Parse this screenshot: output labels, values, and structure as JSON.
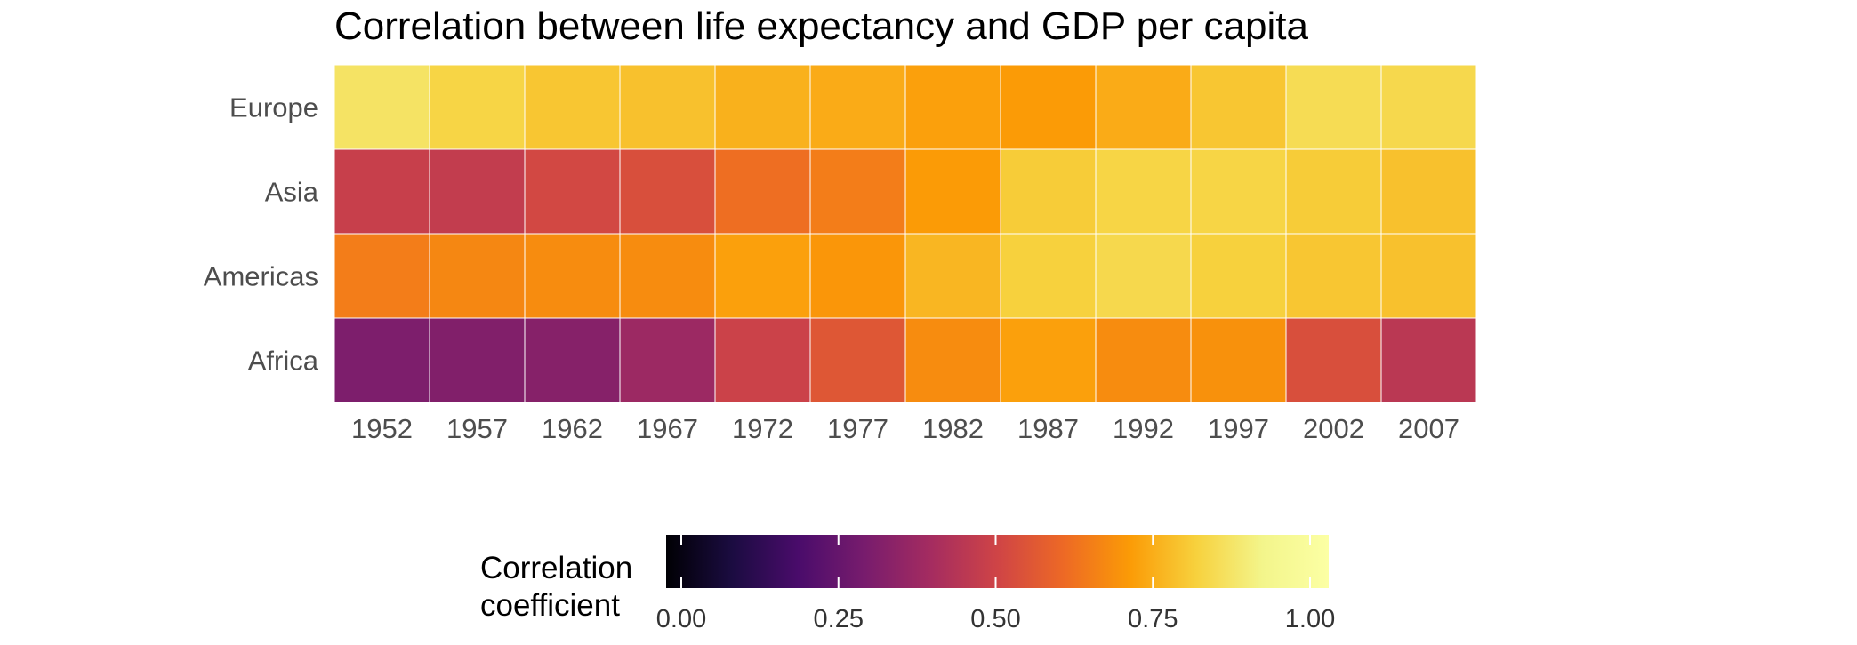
{
  "chart_data": {
    "type": "heatmap",
    "title": "Correlation between life expectancy and GDP per capita",
    "x": [
      "1952",
      "1957",
      "1962",
      "1967",
      "1972",
      "1977",
      "1982",
      "1987",
      "1992",
      "1997",
      "2002",
      "2007"
    ],
    "y": [
      "Europe",
      "Asia",
      "Americas",
      "Africa"
    ],
    "values": [
      [
        0.85,
        0.81,
        0.78,
        0.77,
        0.74,
        0.73,
        0.71,
        0.7,
        0.73,
        0.78,
        0.83,
        0.82
      ],
      [
        0.48,
        0.47,
        0.51,
        0.53,
        0.61,
        0.64,
        0.7,
        0.79,
        0.81,
        0.81,
        0.79,
        0.77
      ],
      [
        0.64,
        0.66,
        0.67,
        0.67,
        0.71,
        0.69,
        0.75,
        0.8,
        0.82,
        0.8,
        0.78,
        0.77
      ],
      [
        0.31,
        0.32,
        0.33,
        0.38,
        0.49,
        0.55,
        0.67,
        0.71,
        0.67,
        0.68,
        0.53,
        0.45
      ]
    ],
    "colorbar": {
      "title_lines": [
        "Correlation",
        "coefficient"
      ],
      "ticks": [
        "0.00",
        "0.25",
        "0.50",
        "0.75",
        "1.00"
      ],
      "tick_values": [
        0,
        0.25,
        0.5,
        0.75,
        1.0
      ],
      "range": [
        0,
        1
      ],
      "colormap": "inferno",
      "placement": "bottom"
    }
  }
}
